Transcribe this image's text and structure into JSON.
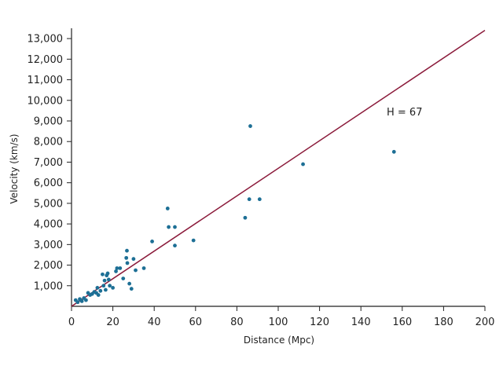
{
  "chart_data": {
    "type": "scatter",
    "xlabel": "Distance (Mpc)",
    "ylabel": "Velocity (km/s)",
    "xlim": [
      0,
      200
    ],
    "ylim": [
      0,
      13500
    ],
    "xticks": [
      0,
      20,
      40,
      60,
      80,
      100,
      120,
      140,
      160,
      180,
      200
    ],
    "yticks": [
      1000,
      2000,
      3000,
      4000,
      5000,
      6000,
      7000,
      8000,
      9000,
      10000,
      11000,
      12000,
      13000
    ],
    "ytick_labels": [
      "1,000",
      "2,000",
      "3,000",
      "4,000",
      "5,000",
      "6,000",
      "7,000",
      "8,000",
      "9,000",
      "10,000",
      "11,000",
      "12,000",
      "13,000"
    ],
    "grid": false,
    "fit_line": {
      "slope": 67,
      "x": [
        0,
        200
      ],
      "y": [
        0,
        13400
      ],
      "color": "#8b1a3a"
    },
    "annotation": "H = 67",
    "point_color": "#1d6f95",
    "points": [
      [
        2,
        300
      ],
      [
        3,
        200
      ],
      [
        4,
        350
      ],
      [
        5,
        250
      ],
      [
        6,
        400
      ],
      [
        7,
        300
      ],
      [
        8,
        650
      ],
      [
        9,
        550
      ],
      [
        10,
        600
      ],
      [
        11,
        700
      ],
      [
        12,
        650
      ],
      [
        12.5,
        900
      ],
      [
        13,
        550
      ],
      [
        14,
        750
      ],
      [
        15,
        1550
      ],
      [
        15.5,
        1000
      ],
      [
        16,
        1250
      ],
      [
        16.5,
        800
      ],
      [
        17,
        1500
      ],
      [
        17.5,
        1600
      ],
      [
        18,
        1300
      ],
      [
        18.5,
        1000
      ],
      [
        20,
        900
      ],
      [
        21.5,
        1700
      ],
      [
        22,
        1850
      ],
      [
        23.5,
        1850
      ],
      [
        25,
        1350
      ],
      [
        26.5,
        2350
      ],
      [
        26.8,
        2700
      ],
      [
        27,
        2100
      ],
      [
        28,
        1100
      ],
      [
        29,
        850
      ],
      [
        30,
        2300
      ],
      [
        31,
        1750
      ],
      [
        35,
        1850
      ],
      [
        39,
        3150
      ],
      [
        46.5,
        4750
      ],
      [
        47,
        3850
      ],
      [
        50,
        3850
      ],
      [
        50,
        2950
      ],
      [
        59,
        3200
      ],
      [
        84,
        4300
      ],
      [
        86,
        5200
      ],
      [
        86.5,
        8750
      ],
      [
        91,
        5200
      ],
      [
        112,
        6900
      ],
      [
        156,
        7500
      ]
    ]
  }
}
